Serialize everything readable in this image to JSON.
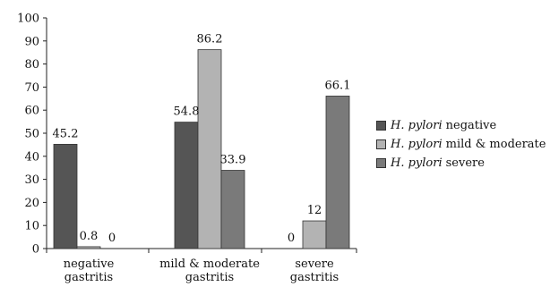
{
  "chart_data": {
    "type": "bar",
    "categories": [
      [
        "negative",
        "gastritis"
      ],
      [
        "mild & moderate",
        "gastritis"
      ],
      [
        "severe",
        "gastritis"
      ]
    ],
    "series": [
      {
        "name_italic": "H. pylori",
        "name_rest": "negative",
        "color": "#555555",
        "values": [
          45.2,
          54.8,
          0
        ]
      },
      {
        "name_italic": "H. pylori",
        "name_rest": "mild & moderate",
        "color": "#b3b3b3",
        "values": [
          0.8,
          86.2,
          12
        ]
      },
      {
        "name_italic": "H. pylori",
        "name_rest": "severe",
        "color": "#7a7a7a",
        "values": [
          0,
          33.9,
          66.1
        ]
      }
    ],
    "data_labels": [
      [
        "45.2",
        "54.8",
        "0"
      ],
      [
        "0.8",
        "86.2",
        "12"
      ],
      [
        "0",
        "33.9",
        "66.1"
      ]
    ],
    "ylim": [
      0,
      100
    ],
    "yticks": [
      0,
      10,
      20,
      30,
      40,
      50,
      60,
      70,
      80,
      90,
      100
    ],
    "legend_position": "right",
    "grid": false
  }
}
